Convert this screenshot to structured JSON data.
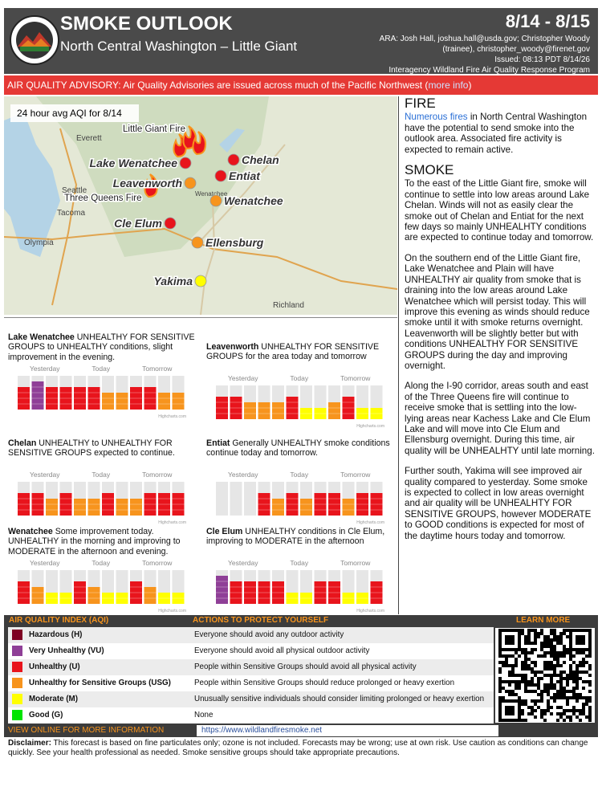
{
  "header": {
    "title": "SMOKE OUTLOOK",
    "subtitle": "North Central Washington – Little Giant",
    "dates": "8/14 - 8/15",
    "credits": [
      "ARA: Josh Hall, joshua.hall@usda.gov; Christopher Woody",
      "(trainee), christopher_woody@firenet.gov",
      "Issued: 08:13 PDT 8/14/26",
      "Interagency Wildland Fire Air Quality Response Program"
    ]
  },
  "advisory": {
    "text_before": "AIR QUALITY ADVISORY: Air Quality Advisories are issued across much of the Pacific Northwest (",
    "link": "more info",
    "text_after": ")"
  },
  "map": {
    "caption": "24 hour avg AQI for 8/14",
    "fires": [
      "Little Giant Fire",
      "Three Queens Fire"
    ],
    "towns": [
      "Everett",
      "Seattle",
      "Tacoma",
      "Olympia",
      "Richland",
      "Wenatchee"
    ],
    "sites": [
      {
        "name": "Lake Wenatchee",
        "color": "#e8141c"
      },
      {
        "name": "Chelan",
        "color": "#e8141c"
      },
      {
        "name": "Leavenworth",
        "color": "#f7941d"
      },
      {
        "name": "Entiat",
        "color": "#e8141c"
      },
      {
        "name": "Wenatchee",
        "color": "#f7941d"
      },
      {
        "name": "Cle Elum",
        "color": "#e8141c"
      },
      {
        "name": "Ellensburg",
        "color": "#f7941d"
      },
      {
        "name": "Yakima",
        "color": "#ffff00"
      }
    ]
  },
  "fire": {
    "heading": "FIRE",
    "link": "Numerous fires",
    "text": "in North Central Washington have the potential to send smoke into the outlook area. Associated fire activity is expected to remain active."
  },
  "smoke": {
    "heading": "SMOKE",
    "paragraphs": [
      "To the east of the Little Giant fire, smoke will continue to settle into low areas around Lake Chelan. Winds will not as easily clear the smoke out of Chelan and Entiat for the next few days so mainly UNHEALHTY conditions are expected to continue today and tomorrow.",
      "On the southern end of the Little Giant fire, Lake Wenatchee and Plain will have UNHEALTHY air quality from smoke that is draining into the low areas around Lake Wenatchee which will persist today. This will improve this evening as winds should reduce smoke until it with smoke returns overnight. Leavenworth will be slightly better but with conditions UNHEALTHY FOR SENSITIVE GROUPS during the day and improving overnight.",
      "Along the I-90 corridor, areas south and east of the Three Queens fire will continue to receive smoke that is settling into the low-lying areas near Kachess Lake and Cle Elum Lake and will move into Cle Elum and Ellensburg overnight. During this time, air quality will be UNHEALHTY until late morning.",
      "Further south, Yakima will see improved air quality compared to yesterday. Some smoke is expected to collect in low areas overnight and air quality will be UNHEALHTY FOR SENSITIVE GROUPS, however MODERATE to GOOD conditions is expected for most of the daytime hours today and tomorrow."
    ]
  },
  "forecasts": {
    "day_labels": [
      "Yesterday",
      "Today",
      "Tomorrow"
    ],
    "credit": "Highcharts.com",
    "sites": [
      {
        "name": "Lake Wenatchee",
        "text": "UNHEALTHY FOR SENSITIVE GROUPS to UNHEALTHY conditions, slight improvement in the evening.",
        "bars": [
          "#e8141c",
          "#8f3f97",
          "#e8141c",
          "#e8141c",
          "#e8141c",
          "#e8141c",
          "#f7941d",
          "#f7941d",
          "#e8141c",
          "#e8141c",
          "#f7941d",
          "#f7941d"
        ]
      },
      {
        "name": "Leavenworth",
        "text": "UNHEALTHY FOR SENSITIVE GROUPS for the area today and tomorrow",
        "bars": [
          "#e8141c",
          "#e8141c",
          "#f7941d",
          "#f7941d",
          "#f7941d",
          "#e8141c",
          "#ffff00",
          "#ffff00",
          "#f7941d",
          "#e8141c",
          "#ffff00",
          "#ffff00"
        ]
      },
      {
        "name": "Chelan",
        "text": "UNHEALTHY to UNHEALTHY FOR SENSITIVE GROUPS expected to continue.",
        "bars": [
          "#e8141c",
          "#e8141c",
          "#f7941d",
          "#e8141c",
          "#f7941d",
          "#f7941d",
          "#e8141c",
          "#f7941d",
          "#f7941d",
          "#e8141c",
          "#e8141c",
          "#e8141c"
        ]
      },
      {
        "name": "Entiat",
        "text": "Generally UNHEALTHY smoke conditions continue today and tomorrow.",
        "bars": [
          null,
          null,
          null,
          "#e8141c",
          "#f7941d",
          "#e8141c",
          "#f7941d",
          "#e8141c",
          "#e8141c",
          "#f7941d",
          "#e8141c",
          "#e8141c"
        ]
      },
      {
        "name": "Wenatchee",
        "text": "Some improvement today. UNHEALTHY in the morning and improving to MODERATE in the afternoon and evening.",
        "bars": [
          "#e8141c",
          "#f7941d",
          "#ffff00",
          "#ffff00",
          "#e8141c",
          "#f7941d",
          "#ffff00",
          "#ffff00",
          "#e8141c",
          "#f7941d",
          "#ffff00",
          "#ffff00"
        ]
      },
      {
        "name": "Cle Elum",
        "text": "UNHEALTHY conditions in Cle Elum, improving to MODERATE in the afternoon",
        "bars": [
          "#8f3f97",
          "#e8141c",
          "#e8141c",
          "#e8141c",
          "#e8141c",
          "#ffff00",
          "#ffff00",
          "#e8141c",
          "#e8141c",
          "#ffff00",
          "#ffff00",
          "#e8141c"
        ]
      }
    ]
  },
  "aqi_table": {
    "headers": [
      "AIR QUALITY INDEX (AQI)",
      "ACTIONS TO PROTECT YOURSELF",
      "LEARN MORE"
    ],
    "rows": [
      {
        "color": "#7e0023",
        "category": "Hazardous (H)",
        "action": "Everyone should avoid any outdoor activity"
      },
      {
        "color": "#8f3f97",
        "category": "Very Unhealthy (VU)",
        "action": "Everyone should avoid all physical outdoor activity"
      },
      {
        "color": "#e8141c",
        "category": "Unhealthy (U)",
        "action": "People within Sensitive Groups should avoid all physical activity"
      },
      {
        "color": "#f7941d",
        "category": "Unhealthy for Sensitive Groups (USG)",
        "action": "People within Sensitive Groups should reduce prolonged or heavy exertion"
      },
      {
        "color": "#ffff00",
        "category": "Moderate (M)",
        "action": "Unusually sensitive individuals should consider limiting prolonged or heavy exertion"
      },
      {
        "color": "#00e400",
        "category": "Good (G)",
        "action": "None"
      }
    ],
    "footer": "VIEW ONLINE FOR MORE INFORMATION",
    "url": "https://www.wildlandfiresmoke.net"
  },
  "disclaimer": {
    "label": "Disclaimer:",
    "text": "This forecast is based on fine particulates only; ozone is not included. Forecasts may be wrong; use at own risk. Use caution as conditions can change quickly. See your health professional as needed. Smoke sensitive groups should take appropriate precautions."
  }
}
